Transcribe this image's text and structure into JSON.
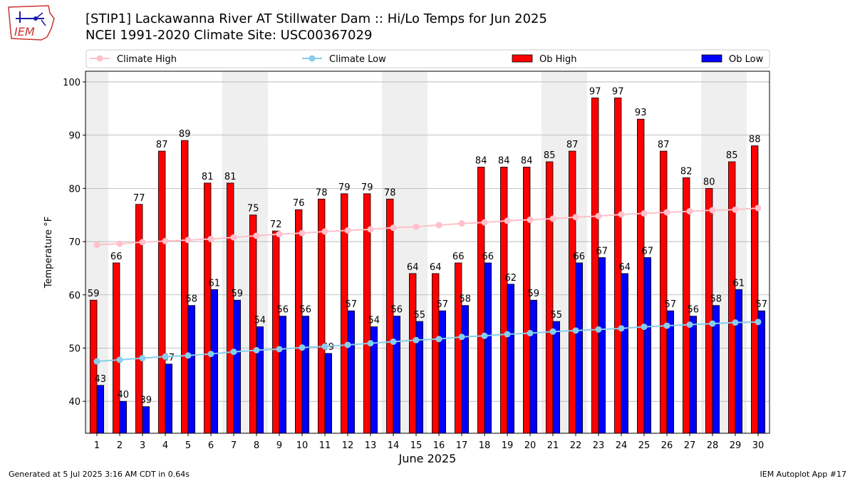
{
  "header": {
    "logo_text": "IEM",
    "title_line1": "[STIP1] Lackawanna River  AT Stillwater Dam :: Hi/Lo Temps for Jun 2025",
    "title_line2": "NCEI 1991-2020 Climate Site: USC00367029"
  },
  "footer": {
    "generated": "Generated at 5 Jul 2025 3:16 AM CDT in 0.64s",
    "app": "IEM Autoplot App #17"
  },
  "colors": {
    "ob_high": "#ff0000",
    "ob_low": "#0000ff",
    "climate_high": "#ffc0cb",
    "climate_low": "#87ceeb",
    "weekend_shade": "#efefef",
    "grid": "#b0b0b0"
  },
  "chart_data": {
    "type": "bar",
    "xlabel": "June 2025",
    "ylabel": "Temperature °F",
    "ylim": [
      34,
      102
    ],
    "yticks": [
      40,
      50,
      60,
      70,
      80,
      90,
      100
    ],
    "grid": "horizontal",
    "legend_placement": "top",
    "categories": [
      "1",
      "2",
      "3",
      "4",
      "5",
      "6",
      "7",
      "8",
      "9",
      "10",
      "11",
      "12",
      "13",
      "14",
      "15",
      "16",
      "17",
      "18",
      "19",
      "20",
      "21",
      "22",
      "23",
      "24",
      "25",
      "26",
      "27",
      "28",
      "29",
      "30"
    ],
    "shaded_days": [
      1,
      7,
      8,
      14,
      15,
      21,
      22,
      28,
      29
    ],
    "bar_series": [
      {
        "name": "Ob High",
        "values": [
          59,
          66,
          77,
          87,
          89,
          81,
          81,
          75,
          72,
          76,
          78,
          79,
          79,
          78,
          64,
          64,
          66,
          84,
          84,
          84,
          85,
          87,
          97,
          97,
          93,
          87,
          82,
          80,
          85,
          88
        ]
      },
      {
        "name": "Ob Low",
        "values": [
          43,
          40,
          39,
          47,
          58,
          61,
          59,
          54,
          56,
          56,
          49,
          57,
          54,
          56,
          55,
          57,
          58,
          66,
          62,
          59,
          55,
          66,
          67,
          64,
          67,
          57,
          56,
          58,
          61,
          57
        ]
      }
    ],
    "line_series": [
      {
        "name": "Climate High",
        "values": [
          69.4,
          69.6,
          69.9,
          70.1,
          70.3,
          70.5,
          70.8,
          71.1,
          71.4,
          71.6,
          71.9,
          72.1,
          72.3,
          72.6,
          72.8,
          73.1,
          73.4,
          73.6,
          73.9,
          74.1,
          74.3,
          74.6,
          74.8,
          75.1,
          75.3,
          75.5,
          75.7,
          75.9,
          76.0,
          76.3
        ]
      },
      {
        "name": "Climate Low",
        "values": [
          47.5,
          47.8,
          48.1,
          48.4,
          48.6,
          48.9,
          49.3,
          49.6,
          49.8,
          50.1,
          50.3,
          50.6,
          50.9,
          51.2,
          51.5,
          51.7,
          52.1,
          52.3,
          52.6,
          52.8,
          53.1,
          53.3,
          53.5,
          53.7,
          54.0,
          54.2,
          54.4,
          54.6,
          54.8,
          54.9
        ]
      }
    ]
  }
}
